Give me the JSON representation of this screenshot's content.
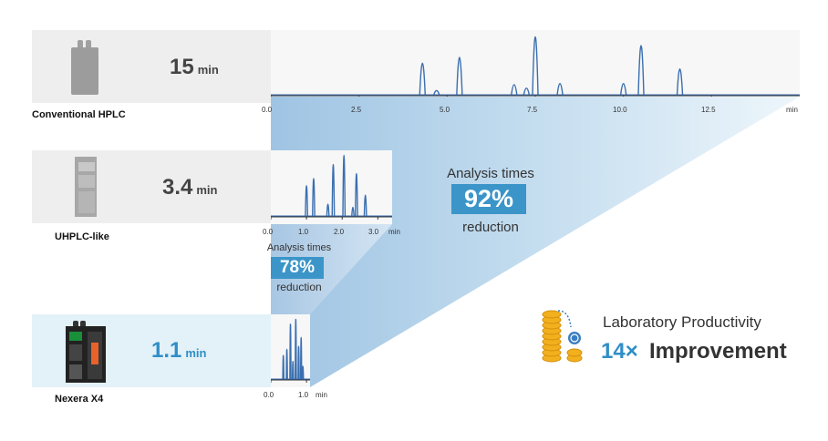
{
  "rows": [
    {
      "label": "Conventional HPLC",
      "time_value": "15",
      "time_unit": "min",
      "instrument_icon": "conventional-hplc-icon"
    },
    {
      "label": "UHPLC-like",
      "time_value": "3.4",
      "time_unit": "min",
      "instrument_icon": "uhplc-instrument-icon"
    },
    {
      "label": "Nexera X4",
      "time_value": "1.1",
      "time_unit": "min",
      "instrument_icon": "nexera-x4-icon"
    }
  ],
  "axes": {
    "conventional_ticks": [
      "0.0",
      "2.5",
      "5.0",
      "7.5",
      "10.0",
      "12.5",
      "min"
    ],
    "uhplc_ticks": [
      "0.0",
      "1.0",
      "2.0",
      "3.0",
      "min"
    ],
    "nexera_ticks": [
      "0.0",
      "1.0",
      "min"
    ]
  },
  "callout_92": {
    "line1": "Analysis times",
    "percent": "92%",
    "line2": "reduction"
  },
  "callout_78": {
    "line1": "Analysis times",
    "percent": "78%",
    "line2": "reduction"
  },
  "productivity": {
    "line1": "Laboratory Productivity",
    "multiplier": "14×",
    "line2": "Improvement",
    "icon": "coin-stack-icon"
  },
  "colors": {
    "accent": "#2f8ec7",
    "badge": "#3b95c9",
    "trace": "#3a6fb0",
    "row_bg": "#eeeeee",
    "row_bg_highlight": "#e3f1f8"
  },
  "chart_data": [
    {
      "type": "line",
      "title": "Conventional HPLC chromatogram",
      "xlabel": "min",
      "ylabel": "",
      "xlim": [
        0,
        15
      ],
      "x_ticks": [
        0.0,
        2.5,
        5.0,
        7.5,
        10.0,
        12.5
      ],
      "peaks": [
        {
          "x": 4.3,
          "h": 0.55
        },
        {
          "x": 4.7,
          "h": 0.08
        },
        {
          "x": 5.35,
          "h": 0.65
        },
        {
          "x": 6.9,
          "h": 0.18
        },
        {
          "x": 7.25,
          "h": 0.12
        },
        {
          "x": 7.5,
          "h": 1.0
        },
        {
          "x": 8.2,
          "h": 0.2
        },
        {
          "x": 10.0,
          "h": 0.2
        },
        {
          "x": 10.5,
          "h": 0.85
        },
        {
          "x": 11.6,
          "h": 0.45
        }
      ]
    },
    {
      "type": "line",
      "title": "UHPLC-like chromatogram",
      "xlabel": "min",
      "ylabel": "",
      "xlim": [
        0,
        3.4
      ],
      "x_ticks": [
        0.0,
        1.0,
        2.0,
        3.0
      ],
      "peaks": [
        {
          "x": 1.0,
          "h": 0.5
        },
        {
          "x": 1.2,
          "h": 0.62
        },
        {
          "x": 1.6,
          "h": 0.2
        },
        {
          "x": 1.75,
          "h": 0.85
        },
        {
          "x": 2.05,
          "h": 1.0
        },
        {
          "x": 2.3,
          "h": 0.15
        },
        {
          "x": 2.4,
          "h": 0.7
        },
        {
          "x": 2.65,
          "h": 0.35
        }
      ]
    },
    {
      "type": "line",
      "title": "Nexera X4 chromatogram",
      "xlabel": "min",
      "ylabel": "",
      "xlim": [
        0,
        1.1
      ],
      "x_ticks": [
        0.0,
        1.0
      ],
      "peaks": [
        {
          "x": 0.35,
          "h": 0.4
        },
        {
          "x": 0.45,
          "h": 0.5
        },
        {
          "x": 0.55,
          "h": 0.92
        },
        {
          "x": 0.62,
          "h": 0.3
        },
        {
          "x": 0.7,
          "h": 1.0
        },
        {
          "x": 0.78,
          "h": 0.55
        },
        {
          "x": 0.85,
          "h": 0.7
        },
        {
          "x": 0.9,
          "h": 0.22
        }
      ]
    }
  ]
}
